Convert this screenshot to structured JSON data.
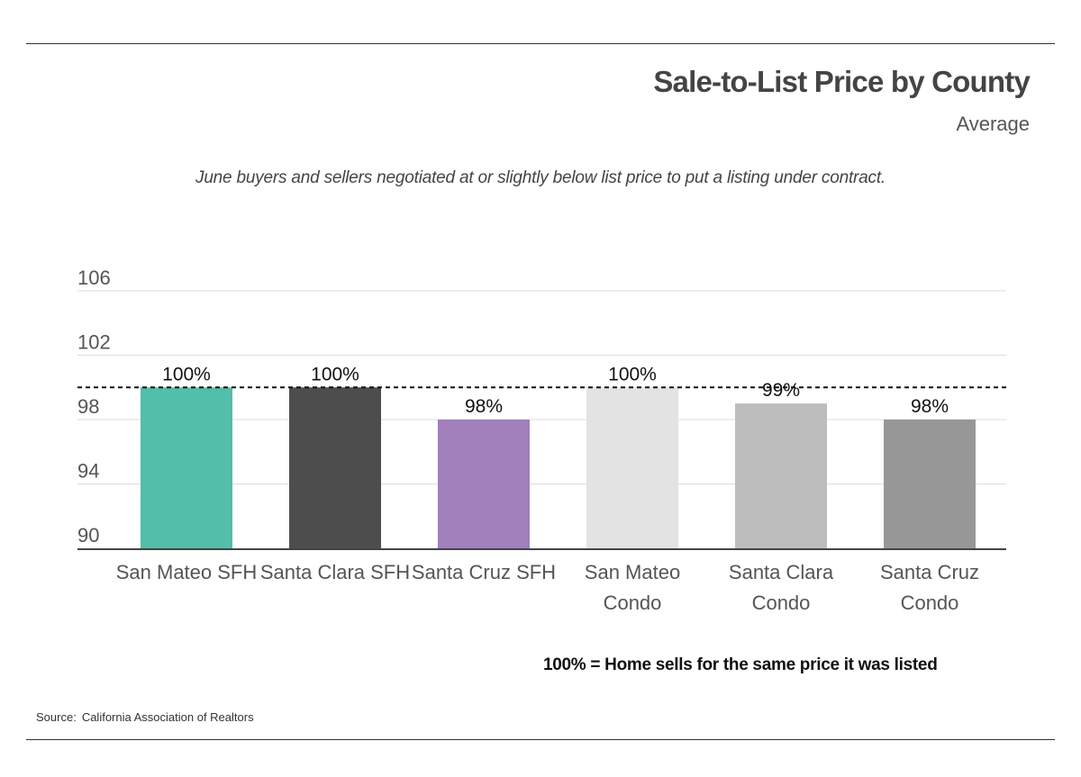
{
  "header": {
    "title": "Sale-to-List Price by County",
    "subtitle": "Average"
  },
  "caption": "June buyers and sellers negotiated at or slightly below list price to put a listing under contract.",
  "note": "100% = Home sells for the same price it was listed",
  "source": {
    "label": "Source:",
    "text": "California Association of Realtors"
  },
  "chart_data": {
    "type": "bar",
    "categories": [
      [
        "San Mateo SFH"
      ],
      [
        "Santa Clara SFH"
      ],
      [
        "Santa Cruz SFH"
      ],
      [
        "San Mateo",
        "Condo"
      ],
      [
        "Santa Clara",
        "Condo"
      ],
      [
        "Santa Cruz",
        "Condo"
      ]
    ],
    "values": [
      100,
      100,
      98,
      100,
      99,
      98
    ],
    "data_labels": [
      "100%",
      "100%",
      "98%",
      "100%",
      "99%",
      "98%"
    ],
    "colors": [
      "#52bfaa",
      "#4d4d4d",
      "#a07fba",
      "#e3e3e3",
      "#bdbdbd",
      "#979797"
    ],
    "ylim": [
      90,
      106
    ],
    "yticks": [
      90,
      94,
      98,
      102,
      106
    ],
    "reference_line": {
      "value": 100,
      "style": "dashed"
    },
    "grid": true,
    "xlabel": "",
    "ylabel": ""
  }
}
